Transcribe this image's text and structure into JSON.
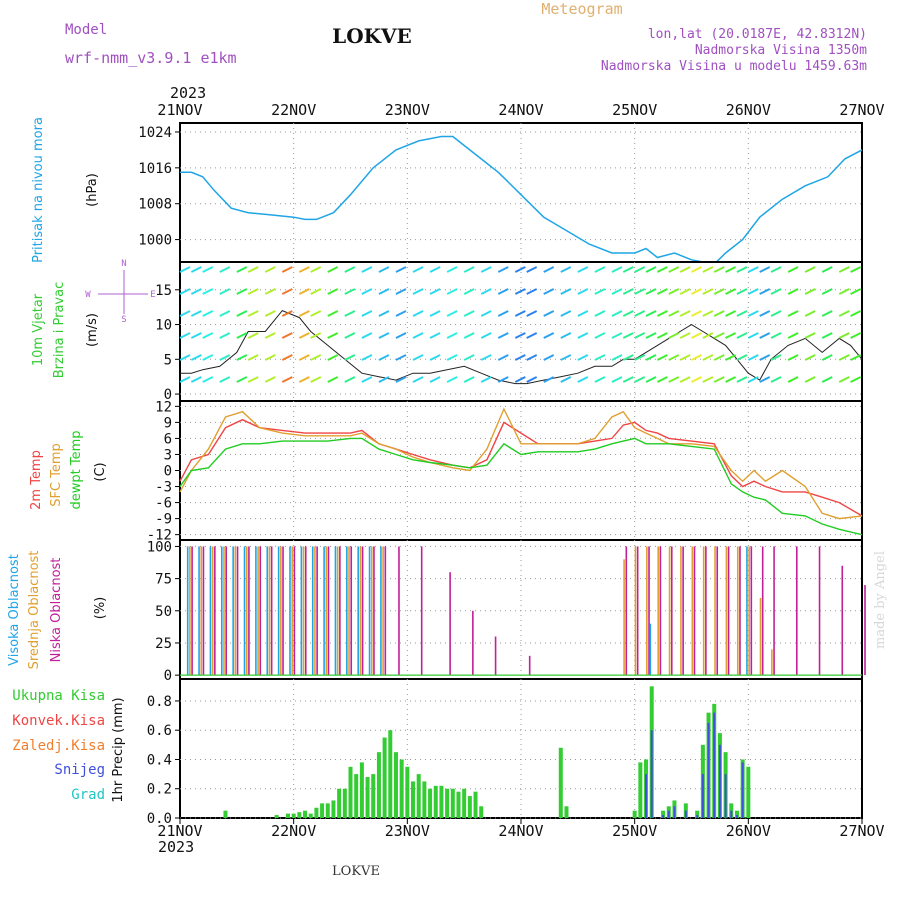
{
  "header": {
    "model_label": "Model",
    "model_name": "wrf-nmm_v3.9.1  e1km",
    "station": "LOKVE",
    "meteogram_label": "Meteogram",
    "lonlat": "lon,lat (20.0187E, 42.8312N)",
    "altitude": "Nadmorska Visina 1350m",
    "model_altitude": "Nadmorska Visina u modelu 1459.63m",
    "year_top": "2023",
    "year_bottom": "2023",
    "footer_station": "LOKVE",
    "watermark": "made by Angel"
  },
  "colors": {
    "pressure": "#1fa5e6",
    "temp2m": "#f04545",
    "sfc_temp": "#e0a030",
    "dewpt": "#22cc22",
    "high_cloud": "#1fa5e6",
    "mid_cloud": "#e0a030",
    "low_cloud": "#c0209a",
    "total_precip": "#33cc33",
    "conv_precip": "#f04545",
    "frz_precip": "#f08030",
    "snow": "#4050dd",
    "hail": "#22c6c6",
    "wind_label": "#33cc33",
    "wind_dir": "#b060d0",
    "model_text": "#a050c0"
  },
  "x_axis": {
    "ticks": [
      "21NOV",
      "22NOV",
      "23NOV",
      "24NOV",
      "25NOV",
      "26NOV",
      "27NOV"
    ]
  },
  "chart_data": [
    {
      "type": "line",
      "name": "pressure",
      "ylabel_main": "Pritisak na nivou mora",
      "ylabel_unit": "(hPa)",
      "yticks": [
        1000,
        1008,
        1016,
        1024
      ],
      "ylim": [
        995,
        1026
      ],
      "grid": true,
      "x_days": [
        0,
        0.1,
        0.2,
        0.3,
        0.45,
        0.6,
        0.8,
        1.0,
        1.1,
        1.2,
        1.35,
        1.5,
        1.7,
        1.9,
        2.1,
        2.3,
        2.4,
        2.6,
        2.8,
        3.0,
        3.2,
        3.4,
        3.6,
        3.8,
        3.9,
        4.0,
        4.1,
        4.2,
        4.35,
        4.5,
        4.6,
        4.7,
        4.8,
        4.95,
        5.1,
        5.3,
        5.5,
        5.7,
        5.85,
        6.0
      ],
      "values": [
        1015,
        1015,
        1014,
        1011,
        1007,
        1006,
        1005.5,
        1005,
        1004.5,
        1004.5,
        1006,
        1010,
        1016,
        1020,
        1022,
        1023,
        1023,
        1019,
        1015,
        1010,
        1005,
        1002,
        999,
        997,
        997,
        997,
        998,
        996,
        997,
        995.5,
        995,
        994.5,
        997,
        1000,
        1005,
        1009,
        1012,
        1014,
        1018,
        1020
      ]
    },
    {
      "type": "line",
      "name": "wind",
      "ylabel_main": "10m Vjetar",
      "ylabel_sub": "Brzina i Pravac",
      "ylabel_unit": "(m/s)",
      "direction_legend": [
        "N",
        "E",
        "S",
        "W"
      ],
      "yticks": [
        0,
        5,
        10,
        15
      ],
      "ylim": [
        -1,
        19
      ],
      "grid": true,
      "x_days": [
        0,
        0.1,
        0.2,
        0.35,
        0.5,
        0.6,
        0.75,
        0.9,
        1.05,
        1.15,
        1.3,
        1.45,
        1.6,
        1.75,
        1.9,
        2.05,
        2.2,
        2.35,
        2.5,
        2.65,
        2.8,
        2.95,
        3.05,
        3.2,
        3.35,
        3.5,
        3.65,
        3.8,
        3.9,
        4.0,
        4.1,
        4.2,
        4.3,
        4.4,
        4.5,
        4.6,
        4.7,
        4.8,
        4.9,
        5.0,
        5.1,
        5.2,
        5.35,
        5.5,
        5.65,
        5.8,
        5.9,
        6.0
      ],
      "values": [
        3,
        3,
        3.5,
        4,
        6,
        9,
        9,
        12,
        11,
        9,
        7,
        5,
        3,
        2.5,
        2,
        3,
        3,
        3.5,
        4,
        3,
        2,
        1.5,
        1.5,
        2,
        2.5,
        3,
        4,
        4,
        5,
        5,
        6,
        7,
        8,
        9,
        10,
        9,
        8,
        7,
        5,
        3,
        2,
        5,
        7,
        8,
        6,
        8,
        7,
        5
      ]
    },
    {
      "type": "line",
      "name": "temperature",
      "ylabel_main": "2m Temp",
      "ylabel_sfc": "SFC Temp",
      "ylabel_dew": "dewpt Temp",
      "ylabel_unit": "(C)",
      "yticks": [
        -12,
        -9,
        -6,
        -3,
        0,
        3,
        6,
        9,
        12
      ],
      "ylim": [
        -13,
        13
      ],
      "grid": true,
      "x_days": [
        0,
        0.1,
        0.25,
        0.4,
        0.55,
        0.7,
        0.9,
        1.1,
        1.3,
        1.5,
        1.6,
        1.75,
        1.9,
        2.05,
        2.2,
        2.4,
        2.55,
        2.7,
        2.85,
        3.0,
        3.15,
        3.3,
        3.5,
        3.65,
        3.8,
        3.9,
        4.0,
        4.1,
        4.2,
        4.3,
        4.5,
        4.7,
        4.85,
        4.95,
        5.05,
        5.15,
        5.3,
        5.5,
        5.65,
        5.8,
        6.0
      ],
      "series": [
        {
          "name": "2m Temp",
          "values": [
            -2,
            2,
            3,
            8,
            9.5,
            8,
            7.5,
            7,
            7,
            7,
            7.5,
            5,
            4,
            3,
            2,
            1,
            0.5,
            2,
            9,
            7,
            5,
            5,
            5,
            5.5,
            6,
            8.5,
            9,
            7.5,
            7,
            6,
            5.5,
            5,
            -1,
            -3,
            -2,
            -3,
            -4,
            -4,
            -5,
            -6,
            -8.5
          ]
        },
        {
          "name": "SFC Temp",
          "values": [
            -4,
            0,
            4,
            10,
            11,
            8,
            7,
            6.5,
            6.5,
            6.5,
            7,
            5,
            4,
            2.5,
            1.5,
            0.5,
            0,
            4,
            11.5,
            5,
            5,
            5,
            5,
            6,
            10,
            11,
            8,
            7,
            6,
            5,
            5,
            4.5,
            0,
            -2,
            0,
            -2,
            0,
            -3,
            -8,
            -9,
            -8.5
          ]
        },
        {
          "name": "dewpt Temp",
          "values": [
            -3,
            0,
            0.5,
            4,
            5,
            5,
            5.5,
            5.5,
            5.5,
            6,
            6,
            4,
            3,
            2,
            1.5,
            1,
            0.5,
            1,
            5,
            3,
            3.5,
            3.5,
            3.5,
            4,
            5,
            5.5,
            6,
            5,
            5,
            5,
            4.5,
            4,
            -2.5,
            -4,
            -5,
            -5.5,
            -8,
            -8.5,
            -10,
            -11,
            -12
          ]
        }
      ]
    },
    {
      "type": "bar",
      "name": "cloud",
      "ylabel_high": "Visoka Oblacnost",
      "ylabel_mid": "Srednja Oblacnost",
      "ylabel_low": "Niska Oblacnost",
      "ylabel_unit": "(%)",
      "yticks": [
        0,
        25,
        50,
        75,
        100
      ],
      "ylim": [
        -3,
        105
      ],
      "grid": true,
      "x_days": [
        0.08,
        0.18,
        0.28,
        0.38,
        0.48,
        0.58,
        0.68,
        0.78,
        0.88,
        0.98,
        1.08,
        1.18,
        1.28,
        1.38,
        1.48,
        1.58,
        1.68,
        1.78,
        1.9,
        2.1,
        2.35,
        2.55,
        2.75,
        3.05,
        3.9,
        4.0,
        4.1,
        4.15,
        4.2,
        4.3,
        4.4,
        4.5,
        4.6,
        4.7,
        4.8,
        4.9,
        5.0,
        5.1,
        5.2,
        5.4,
        5.6,
        5.8,
        6.0
      ],
      "series": [
        {
          "name": "Visoka Oblacnost",
          "values": [
            100,
            100,
            100,
            100,
            100,
            100,
            100,
            100,
            100,
            100,
            100,
            100,
            100,
            100,
            100,
            100,
            100,
            100,
            0,
            0,
            0,
            0,
            0,
            0,
            0,
            0,
            0,
            40,
            0,
            0,
            0,
            0,
            0,
            0,
            0,
            0,
            100,
            0,
            0,
            0,
            0,
            0,
            0
          ]
        },
        {
          "name": "Srednja Oblacnost",
          "values": [
            100,
            100,
            100,
            100,
            100,
            100,
            100,
            100,
            100,
            100,
            100,
            100,
            100,
            100,
            100,
            100,
            100,
            100,
            0,
            0,
            0,
            0,
            0,
            0,
            90,
            100,
            100,
            0,
            100,
            100,
            100,
            100,
            100,
            100,
            100,
            100,
            100,
            60,
            20,
            0,
            0,
            0,
            0
          ]
        },
        {
          "name": "Niska Oblacnost",
          "values": [
            100,
            100,
            100,
            100,
            100,
            100,
            100,
            100,
            100,
            100,
            100,
            100,
            100,
            100,
            100,
            100,
            100,
            100,
            100,
            100,
            80,
            50,
            30,
            15,
            100,
            100,
            100,
            0,
            100,
            100,
            100,
            100,
            100,
            100,
            100,
            100,
            100,
            100,
            100,
            100,
            100,
            85,
            70
          ]
        }
      ]
    },
    {
      "type": "bar",
      "name": "precipitation",
      "legend": [
        "Ukupna Kisa",
        "Konvek.Kisa",
        "Zaledj.Kisa",
        "Snijeg",
        "Grad"
      ],
      "ylabel_unit": "1hr Precip (mm)",
      "yticks": [
        0.0,
        0.2,
        0.4,
        0.6,
        0.8
      ],
      "ylim": [
        0,
        0.95
      ],
      "grid": true,
      "x_days": [
        0.4,
        0.85,
        0.95,
        1.0,
        1.05,
        1.1,
        1.15,
        1.2,
        1.25,
        1.3,
        1.35,
        1.4,
        1.45,
        1.5,
        1.55,
        1.6,
        1.65,
        1.7,
        1.75,
        1.8,
        1.85,
        1.9,
        1.95,
        2.0,
        2.05,
        2.1,
        2.15,
        2.2,
        2.25,
        2.3,
        2.35,
        2.4,
        2.45,
        2.5,
        2.55,
        2.6,
        2.65,
        3.35,
        3.4,
        4.0,
        4.05,
        4.1,
        4.15,
        4.25,
        4.3,
        4.35,
        4.45,
        4.55,
        4.6,
        4.65,
        4.7,
        4.75,
        4.8,
        4.85,
        4.9,
        4.95,
        5.0
      ],
      "series": [
        {
          "name": "Ukupna Kisa",
          "values": [
            0.05,
            0.02,
            0.03,
            0.03,
            0.04,
            0.05,
            0.03,
            0.07,
            0.1,
            0.1,
            0.12,
            0.2,
            0.2,
            0.35,
            0.3,
            0.38,
            0.28,
            0.3,
            0.45,
            0.55,
            0.6,
            0.45,
            0.4,
            0.35,
            0.25,
            0.3,
            0.25,
            0.2,
            0.22,
            0.22,
            0.2,
            0.2,
            0.18,
            0.2,
            0.15,
            0.18,
            0.08,
            0.48,
            0.08,
            0.05,
            0.38,
            0.4,
            0.9,
            0.05,
            0.08,
            0.12,
            0.1,
            0.05,
            0.5,
            0.72,
            0.78,
            0.58,
            0.45,
            0.1,
            0.05,
            0.4,
            0.35
          ]
        },
        {
          "name": "Snijeg",
          "values": [
            0,
            0,
            0,
            0,
            0,
            0,
            0,
            0,
            0,
            0,
            0,
            0,
            0,
            0,
            0,
            0,
            0,
            0,
            0,
            0,
            0,
            0,
            0,
            0,
            0,
            0,
            0,
            0,
            0,
            0,
            0,
            0,
            0,
            0,
            0,
            0,
            0,
            0,
            0,
            0,
            0,
            0.3,
            0.6,
            0.02,
            0.05,
            0.08,
            0.05,
            0.02,
            0.3,
            0.65,
            0.72,
            0.5,
            0.3,
            0.05,
            0.02,
            0.38,
            0
          ]
        }
      ]
    }
  ]
}
